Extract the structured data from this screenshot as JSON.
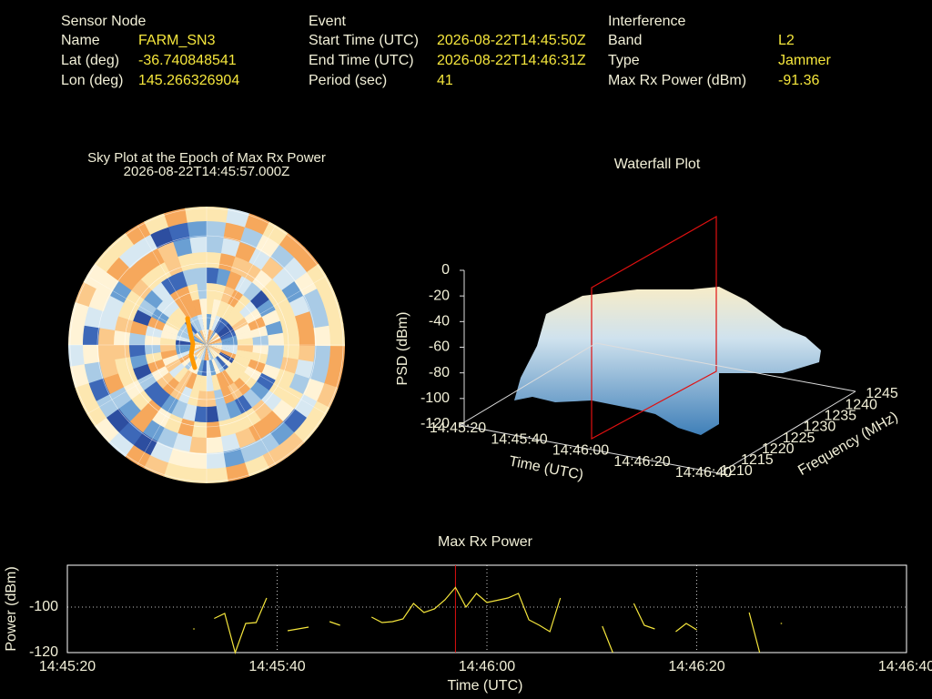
{
  "header": [
    {
      "title": "Sensor Node",
      "rows": [
        [
          "Name",
          "FARM_SN3"
        ],
        [
          "Lat (deg)",
          "-36.740848541"
        ],
        [
          "Lon (deg)",
          "145.266326904"
        ]
      ]
    },
    {
      "title": "Event",
      "rows": [
        [
          "Start Time (UTC)",
          "2026-08-22T14:45:50Z"
        ],
        [
          "End Time (UTC)",
          "2026-08-22T14:46:31Z"
        ],
        [
          "Period (sec)",
          "41"
        ]
      ]
    },
    {
      "title": "Interference",
      "rows": [
        [
          "Band",
          "L2"
        ],
        [
          "Type",
          "Jammer"
        ],
        [
          "Max Rx Power (dBm)",
          "-91.36"
        ]
      ]
    }
  ],
  "sky_plot": {
    "title": "Sky Plot at the Epoch of Max Rx Power",
    "subtitle": "2026-08-22T14:45:57.000Z"
  },
  "waterfall": {
    "title": "Waterfall Plot",
    "z_label": "PSD (dBm)",
    "zticks": [
      0,
      -20,
      -40,
      -60,
      -80,
      -100,
      -120
    ],
    "time_label": "Time (UTC)",
    "time_ticks": [
      "14:45:20",
      "14:45:40",
      "14:46:00",
      "14:46:20",
      "14:46:40"
    ],
    "freq_label": "Frequency (MHz)",
    "freq_ticks": [
      1210,
      1215,
      1220,
      1225,
      1230,
      1235,
      1240,
      1245
    ]
  },
  "chart_data": {
    "type": "line",
    "title": "Max Rx Power",
    "x_label": "Time (UTC)",
    "y_label": "Power (dBm)",
    "x": [
      "14:45:32",
      "14:45:33",
      "14:45:34",
      "14:45:35",
      "14:45:36",
      "14:45:37",
      "14:45:38",
      "14:45:39",
      "14:45:40",
      "14:45:41",
      "14:45:42",
      "14:45:43",
      "14:45:44",
      "14:45:45",
      "14:45:46",
      "14:45:47",
      "14:45:49",
      "14:45:50",
      "14:45:51",
      "14:45:52",
      "14:45:53",
      "14:45:54",
      "14:45:55",
      "14:45:56",
      "14:45:57",
      "14:45:58",
      "14:45:59",
      "14:46:00",
      "14:46:01",
      "14:46:02",
      "14:46:03",
      "14:46:04",
      "14:46:05",
      "14:46:06",
      "14:46:07",
      "14:46:08",
      "14:46:11",
      "14:46:12",
      "14:46:13",
      "14:46:14",
      "14:46:15",
      "14:46:16",
      "14:46:17",
      "14:46:18",
      "14:46:19",
      "14:46:20",
      "14:46:21",
      "14:46:25",
      "14:46:26",
      "14:46:27",
      "14:46:28"
    ],
    "series": [
      {
        "name": "Max Rx Power",
        "color": "#f5e63c",
        "values": [
          -109.6,
          null,
          -105,
          -102.8,
          -120,
          -107.2,
          -106.8,
          -96,
          null,
          -110.4,
          -109.6,
          -108.8,
          null,
          -106.4,
          -108,
          null,
          -104.4,
          -106.8,
          -106.4,
          -105.2,
          -98.4,
          -102.4,
          -100.8,
          -96.8,
          -91.36,
          -100,
          -94,
          -98,
          -97,
          -96,
          -94,
          -105.6,
          -108,
          -110.8,
          -96,
          null,
          -108.4,
          -120,
          null,
          -98.4,
          -108,
          -109.6,
          null,
          -110.8,
          -107.2,
          -110,
          null,
          -102.4,
          -120,
          null,
          -107.2
        ]
      }
    ],
    "xlim": [
      "14:45:20",
      "14:46:40"
    ],
    "xticks": [
      "14:45:20",
      "14:45:40",
      "14:46:00",
      "14:46:20",
      "14:46:40"
    ],
    "ylim": [
      -120,
      -81.6
    ],
    "yticks": [
      -120,
      -100
    ],
    "grid": true,
    "marker_x": "14:45:57",
    "marker_color": "#e01010"
  }
}
